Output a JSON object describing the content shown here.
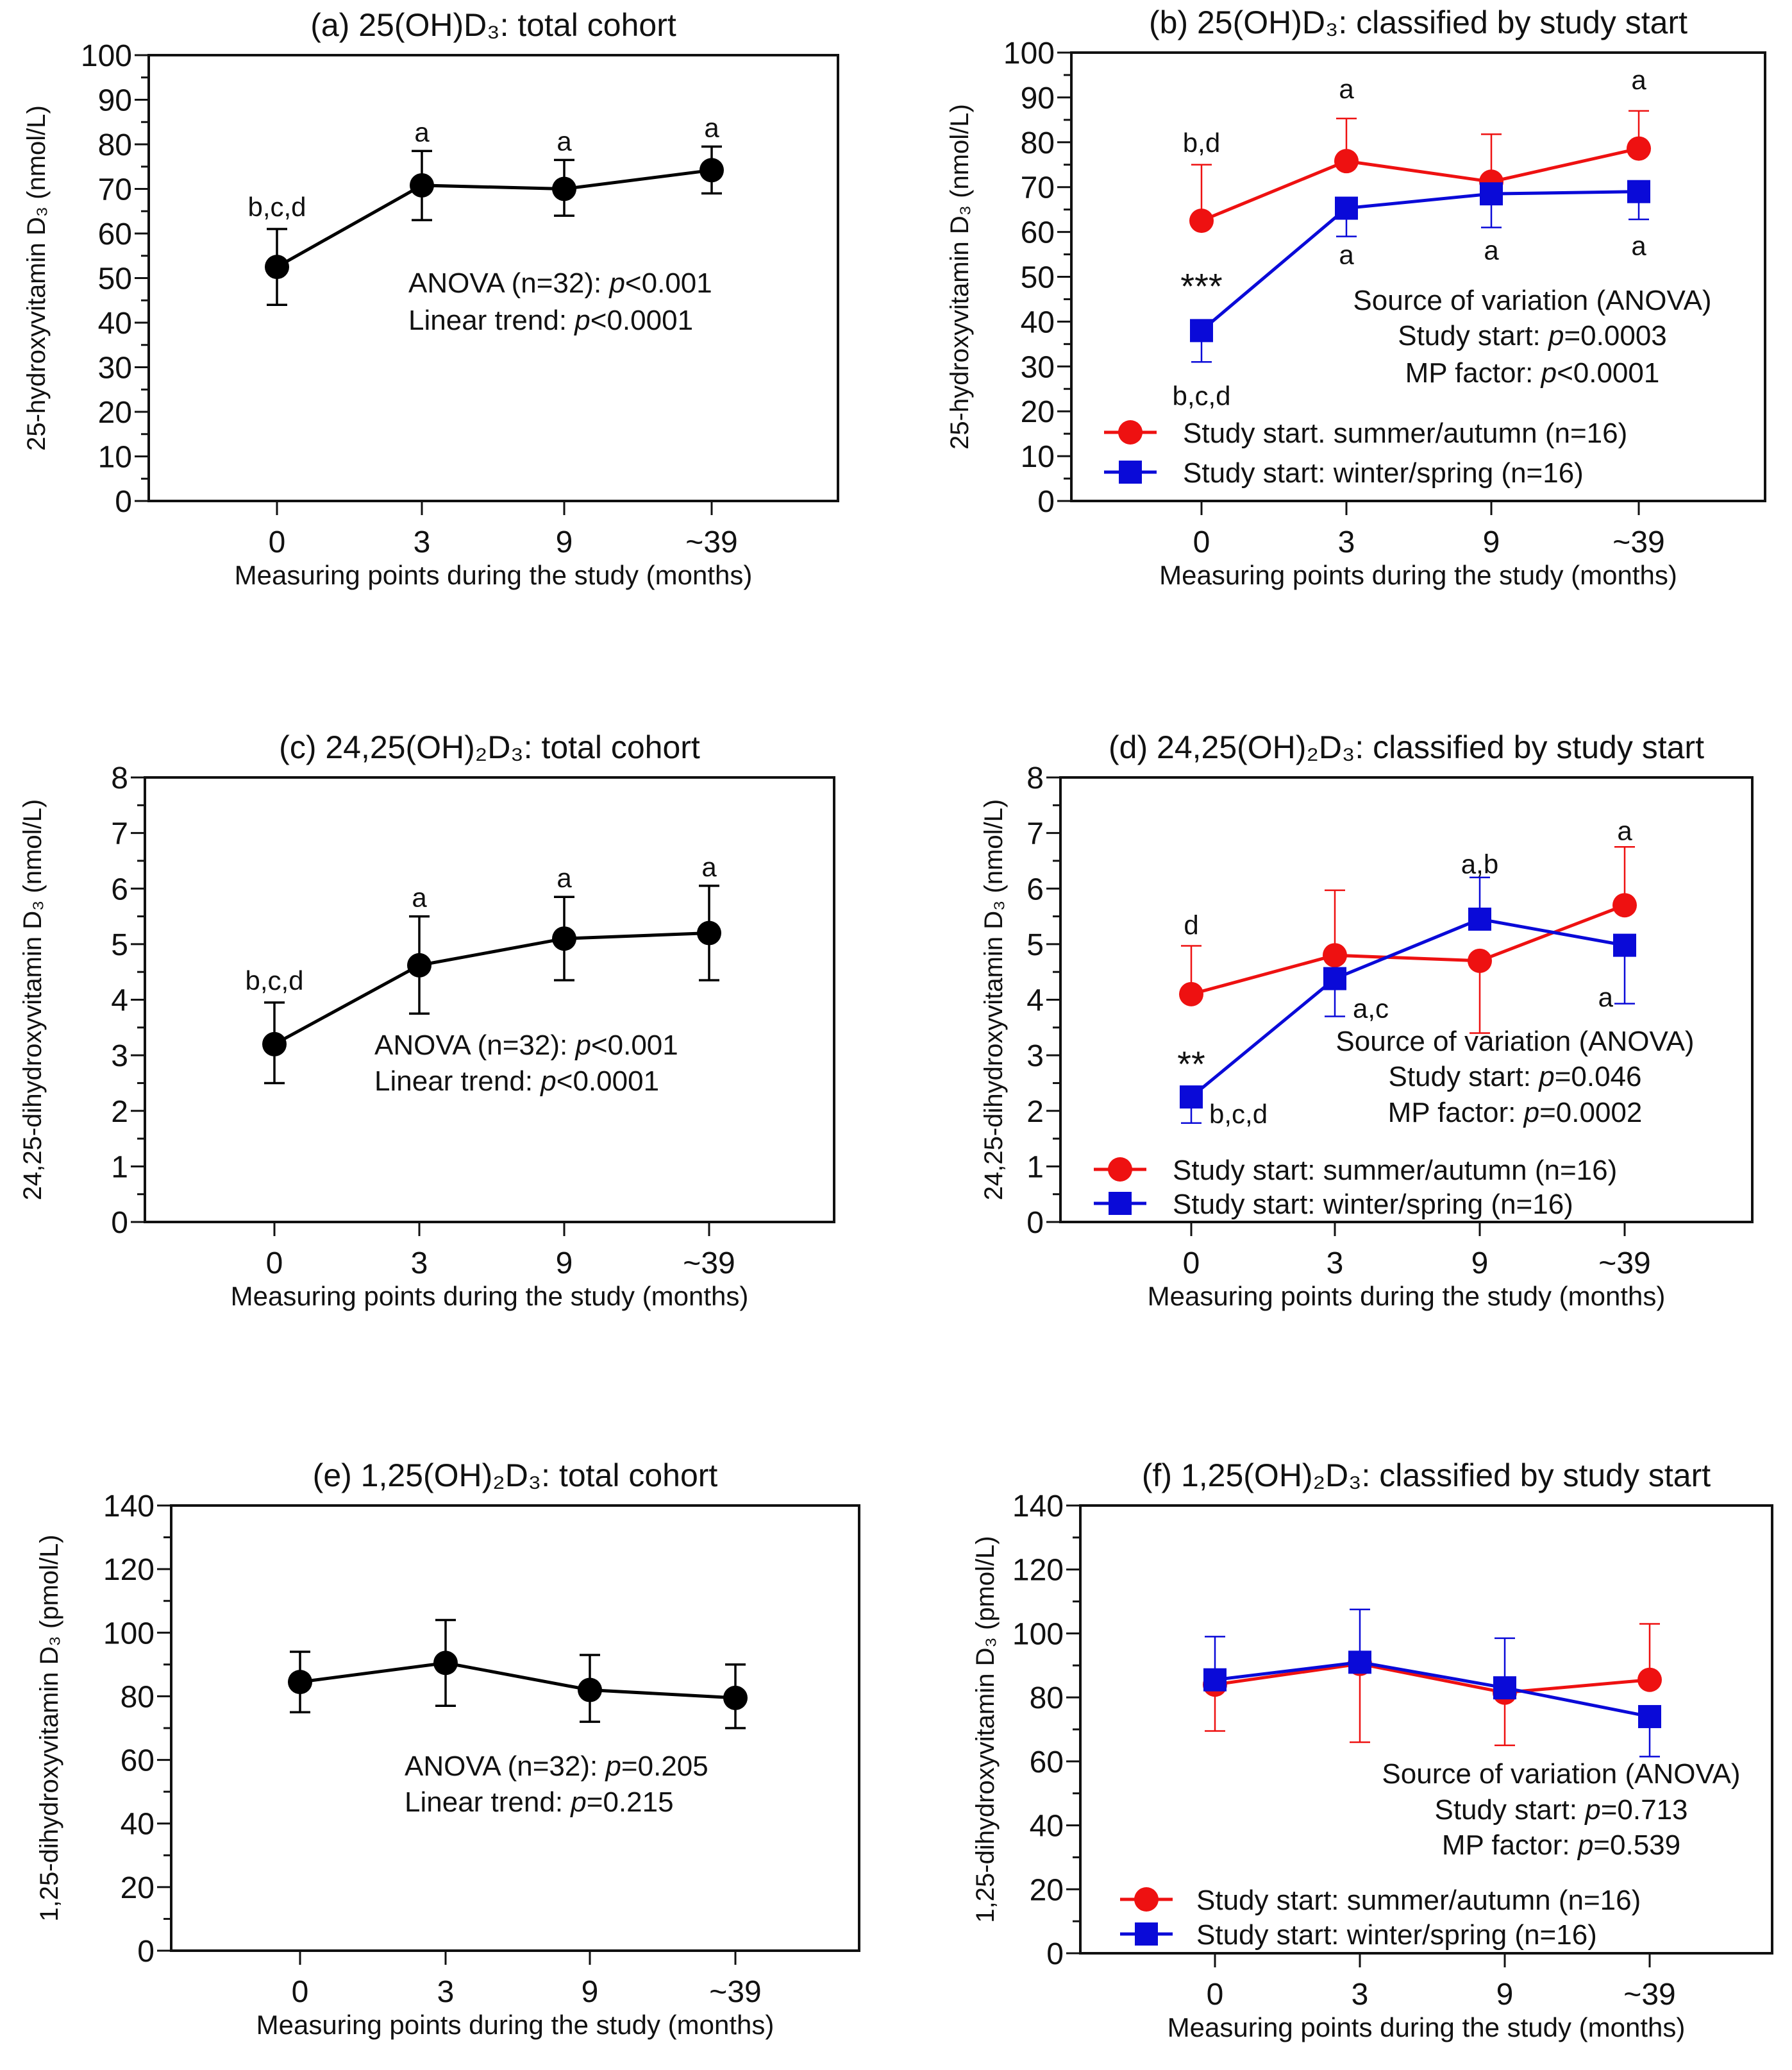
{
  "chart_data": [
    {
      "panel": "a",
      "type": "line",
      "title": "(a) 25(OH)D₃: total cohort",
      "xlabel": "Measuring points during the study (months)",
      "ylabel": "25-hydroxyvitamin D₃ (nmol/L)",
      "categories": [
        "0",
        "3",
        "9",
        "~39"
      ],
      "ylim": [
        0,
        100
      ],
      "ytick_step": 10,
      "minor_step": 5,
      "series": [
        {
          "name": "Total cohort",
          "color": "#000000",
          "marker": "circle",
          "values": [
            52.5,
            70.8,
            70.0,
            74.2
          ],
          "err_low": [
            44,
            63,
            64,
            69
          ],
          "err_high": [
            61,
            78.5,
            76.5,
            79.5
          ]
        }
      ],
      "point_labels": [
        "b,c,d",
        "a",
        "a",
        "a"
      ],
      "stats": [
        "ANOVA (n=32): p<0.001",
        "Linear trend: p<0.0001"
      ],
      "legend": []
    },
    {
      "panel": "b",
      "type": "line",
      "title": "(b) 25(OH)D₃: classified by study start",
      "xlabel": "Measuring points during the study (months)",
      "ylabel": "25-hydroxyvitamin D₃ (nmol/L)",
      "categories": [
        "0",
        "3",
        "9",
        "~39"
      ],
      "ylim": [
        0,
        100
      ],
      "ytick_step": 10,
      "minor_step": 5,
      "series": [
        {
          "name": "Study start. summer/autumn (n=16)",
          "color": "#ee1111",
          "marker": "circle",
          "values": [
            62.5,
            75.8,
            71.2,
            78.6
          ],
          "err_low": [
            null,
            null,
            null,
            null
          ],
          "err_high": [
            75,
            85.3,
            81.8,
            87
          ]
        },
        {
          "name": "Study start: winter/spring (n=16)",
          "color": "#0a0ad8",
          "marker": "square",
          "values": [
            38,
            65.3,
            68.5,
            69
          ],
          "err_low": [
            31,
            59,
            61,
            62.8
          ],
          "err_high": [
            null,
            null,
            null,
            null
          ]
        }
      ],
      "point_labels": [
        "b,d",
        "a",
        "a",
        "b,c,d",
        "a",
        "a",
        "a"
      ],
      "significance": "***",
      "stats": [
        "Source of variation (ANOVA)",
        "Study start: p=0.0003",
        "MP factor: p<0.0001"
      ],
      "legend": [
        "Study start. summer/autumn (n=16)",
        "Study start: winter/spring (n=16)"
      ]
    },
    {
      "panel": "c",
      "type": "line",
      "title": "(c) 24,25(OH)₂D₃: total cohort",
      "xlabel": "Measuring points during the study (months)",
      "ylabel": "24,25-dihydroxyvitamin D₃ (nmol/L)",
      "categories": [
        "0",
        "3",
        "9",
        "~39"
      ],
      "ylim": [
        0,
        8
      ],
      "ytick_step": 1,
      "minor_step": 0.5,
      "series": [
        {
          "name": "Total cohort",
          "color": "#000000",
          "marker": "circle",
          "values": [
            3.2,
            4.62,
            5.1,
            5.2
          ],
          "err_low": [
            2.5,
            3.75,
            4.35,
            4.35
          ],
          "err_high": [
            3.95,
            5.5,
            5.85,
            6.05
          ]
        }
      ],
      "point_labels": [
        "b,c,d",
        "a",
        "a",
        "a"
      ],
      "stats": [
        "ANOVA (n=32): p<0.001",
        "Linear trend: p<0.0001"
      ],
      "legend": []
    },
    {
      "panel": "d",
      "type": "line",
      "title": "(d) 24,25(OH)₂D₃: classified by study start",
      "xlabel": "Measuring points during the study (months)",
      "ylabel": "24,25-dihydroxyvitamin D₃ (nmol/L)",
      "categories": [
        "0",
        "3",
        "9",
        "~39"
      ],
      "ylim": [
        0,
        8
      ],
      "ytick_step": 1,
      "minor_step": 0.5,
      "series": [
        {
          "name": "Study start: summer/autumn (n=16)",
          "color": "#ee1111",
          "marker": "circle",
          "values": [
            4.1,
            4.8,
            4.7,
            5.7
          ],
          "err_low": [
            null,
            null,
            3.4,
            null
          ],
          "err_high": [
            4.97,
            5.97,
            null,
            6.75
          ]
        },
        {
          "name": "Study start: winter/spring (n=16)",
          "color": "#0a0ad8",
          "marker": "square",
          "values": [
            2.25,
            4.38,
            5.45,
            4.98
          ],
          "err_low": [
            1.78,
            3.7,
            null,
            3.93
          ],
          "err_high": [
            null,
            null,
            6.2,
            null
          ]
        }
      ],
      "point_labels": [
        "d",
        "a,c",
        "a,b",
        "a",
        "b,c,d",
        "a"
      ],
      "significance": "**",
      "stats": [
        "Source of variation (ANOVA)",
        "Study start: p=0.046",
        "MP factor: p=0.0002"
      ],
      "legend": [
        "Study start: summer/autumn (n=16)",
        "Study start: winter/spring (n=16)"
      ]
    },
    {
      "panel": "e",
      "type": "line",
      "title": "(e) 1,25(OH)₂D₃: total cohort",
      "xlabel": "Measuring points during the study (months)",
      "ylabel": "1,25-dihydroxyvitamin D₃ (pmol/L)",
      "categories": [
        "0",
        "3",
        "9",
        "~39"
      ],
      "ylim": [
        0,
        140
      ],
      "ytick_step": 20,
      "minor_step": 10,
      "series": [
        {
          "name": "Total cohort",
          "color": "#000000",
          "marker": "circle",
          "values": [
            84.5,
            90.5,
            82,
            79.5
          ],
          "err_low": [
            75,
            77,
            72,
            70
          ],
          "err_high": [
            94,
            104,
            93,
            90
          ]
        }
      ],
      "point_labels": [],
      "stats": [
        "ANOVA (n=32): p=0.205",
        "Linear trend: p=0.215"
      ],
      "legend": []
    },
    {
      "panel": "f",
      "type": "line",
      "title": "(f) 1,25(OH)₂D₃: classified by study start",
      "xlabel": "Measuring points during the study (months)",
      "ylabel": "1,25-dihydroxyvitamin D₃ (pmol/L)",
      "categories": [
        "0",
        "3",
        "9",
        "~39"
      ],
      "ylim": [
        0,
        140
      ],
      "ytick_step": 20,
      "minor_step": 10,
      "series": [
        {
          "name": "Study start: summer/autumn (n=16)",
          "color": "#ee1111",
          "marker": "circle",
          "values": [
            84,
            90.5,
            81.5,
            85.5
          ],
          "err_low": [
            69.5,
            66,
            65,
            null
          ],
          "err_high": [
            null,
            null,
            null,
            103
          ]
        },
        {
          "name": "Study start: winter/spring (n=16)",
          "color": "#0a0ad8",
          "marker": "square",
          "values": [
            85.5,
            91,
            83,
            74
          ],
          "err_low": [
            null,
            null,
            null,
            61.5
          ],
          "err_high": [
            99,
            107.5,
            98.5,
            null
          ]
        }
      ],
      "point_labels": [],
      "stats": [
        "Source of variation (ANOVA)",
        "Study start: p=0.713",
        "MP factor: p=0.539"
      ],
      "legend": [
        "Study start: summer/autumn (n=16)",
        "Study start: winter/spring (n=16)"
      ]
    }
  ]
}
